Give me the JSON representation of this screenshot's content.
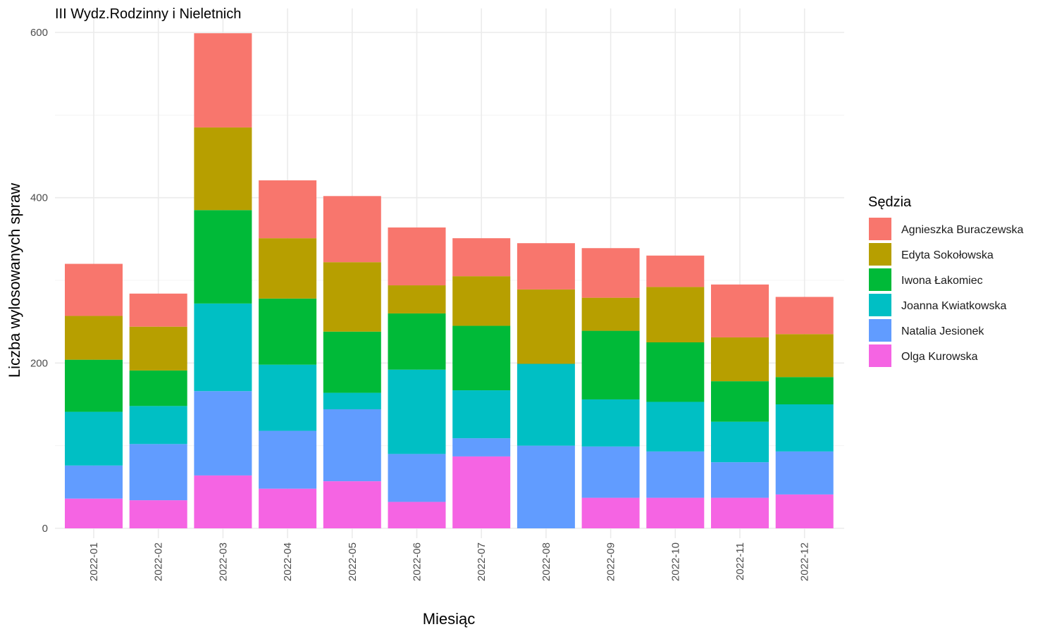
{
  "chart_data": {
    "type": "bar",
    "stacked": true,
    "title": "III Wydz.Rodzinny i Nieletnich",
    "xlabel": "Miesiąc",
    "ylabel": "Liczba wylosowanych spraw",
    "ylim": [
      0,
      600
    ],
    "yticks": [
      0,
      200,
      400,
      600
    ],
    "grid": true,
    "legend": {
      "title": "Sędzia",
      "position": "right"
    },
    "categories": [
      "2022-01",
      "2022-02",
      "2022-03",
      "2022-04",
      "2022-05",
      "2022-06",
      "2022-07",
      "2022-08",
      "2022-09",
      "2022-10",
      "2022-11",
      "2022-12"
    ],
    "series": [
      {
        "name": "Olga Kurowska",
        "color": "#F564E3",
        "values": [
          36,
          34,
          64,
          48,
          57,
          32,
          87,
          0,
          37,
          37,
          37,
          41
        ]
      },
      {
        "name": "Natalia Jesionek",
        "color": "#619CFF",
        "values": [
          40,
          68,
          102,
          70,
          87,
          58,
          22,
          100,
          62,
          56,
          43,
          52
        ]
      },
      {
        "name": "Joanna Kwiatkowska",
        "color": "#00BFC4",
        "values": [
          65,
          46,
          106,
          80,
          20,
          102,
          58,
          99,
          57,
          60,
          49,
          57
        ]
      },
      {
        "name": "Iwona Łakomiec",
        "color": "#00BA38",
        "values": [
          63,
          43,
          113,
          80,
          74,
          68,
          78,
          0,
          83,
          72,
          49,
          33
        ]
      },
      {
        "name": "Edyta Sokołowska",
        "color": "#B79F00",
        "values": [
          53,
          53,
          100,
          73,
          84,
          34,
          60,
          90,
          40,
          67,
          53,
          52
        ]
      },
      {
        "name": "Agnieszka Buraczewska",
        "color": "#F8766D",
        "values": [
          63,
          40,
          114,
          70,
          80,
          70,
          46,
          56,
          60,
          38,
          64,
          45
        ]
      }
    ],
    "legend_order": [
      "Agnieszka Buraczewska",
      "Edyta Sokołowska",
      "Iwona Łakomiec",
      "Joanna Kwiatkowska",
      "Natalia Jesionek",
      "Olga Kurowska"
    ]
  }
}
